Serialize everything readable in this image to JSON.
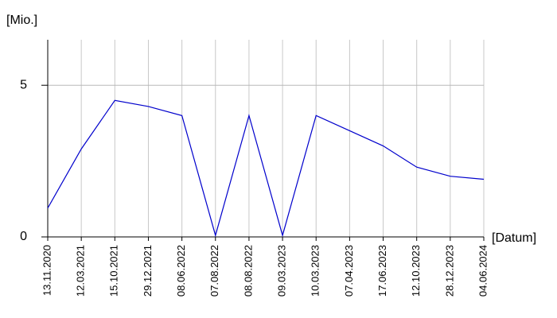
{
  "chart_data": {
    "type": "line",
    "y_label": "[Mio.]",
    "x_label": "[Datum]",
    "categories": [
      "13.11.2020",
      "12.03.2021",
      "15.10.2021",
      "29.12.2021",
      "08.06.2022",
      "07.08.2022",
      "08.08.2022",
      "09.03.2023",
      "10.03.2023",
      "07.04.2023",
      "17.06.2023",
      "12.10.2023",
      "28.12.2023",
      "04.06.2024"
    ],
    "series": [
      {
        "color": "#0000cc",
        "values": [
          0.95,
          2.9,
          4.5,
          4.3,
          4.0,
          0.05,
          4.0,
          0.05,
          4.0,
          3.5,
          3.0,
          2.3,
          2.0,
          1.9
        ]
      }
    ],
    "ylim": [
      0,
      6.5
    ],
    "yticks": [
      0,
      5
    ],
    "grid": true
  }
}
